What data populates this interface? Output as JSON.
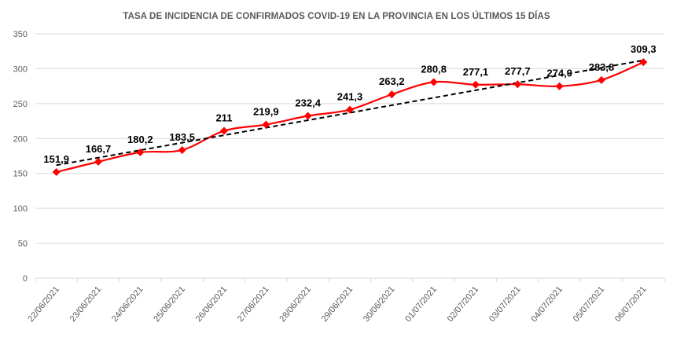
{
  "chart_data": {
    "type": "line",
    "title": "TASA DE INCIDENCIA  DE CONFIRMADOS COVID-19 EN  LA PROVINCIA EN LOS ÚLTIMOS 15 DÍAS",
    "categories": [
      "22/06/2021",
      "23/06/2021",
      "24/06/2021",
      "25/06/2021",
      "26/06/2021",
      "27/06/2021",
      "28/06/2021",
      "29/06/2021",
      "30/06/2021",
      "01/07/2021",
      "02/07/2021",
      "03/07/2021",
      "04/07/2021",
      "05/07/2021",
      "06/07/2021"
    ],
    "series": [
      {
        "values": [
          151.9,
          166.7,
          180.2,
          183.5,
          211,
          219.9,
          232.4,
          241.3,
          263.2,
          280.8,
          277.1,
          277.7,
          274.9,
          283.8,
          309.3
        ],
        "color": "#FF0000",
        "marker": "diamond",
        "smooth": true
      }
    ],
    "data_labels": [
      "151,9",
      "166,7",
      "180,2",
      "183,5",
      "211",
      "219,9",
      "232,4",
      "241,3",
      "263,2",
      "280,8",
      "277,1",
      "277,7",
      "274,9",
      "283,8",
      "309,3"
    ],
    "trendline": {
      "type": "linear",
      "color": "#000000",
      "style": "dashed"
    },
    "ylim": [
      0,
      350
    ],
    "yticks": [
      0,
      50,
      100,
      150,
      200,
      250,
      300,
      350
    ],
    "grid": true,
    "xlabel": "",
    "ylabel": ""
  }
}
